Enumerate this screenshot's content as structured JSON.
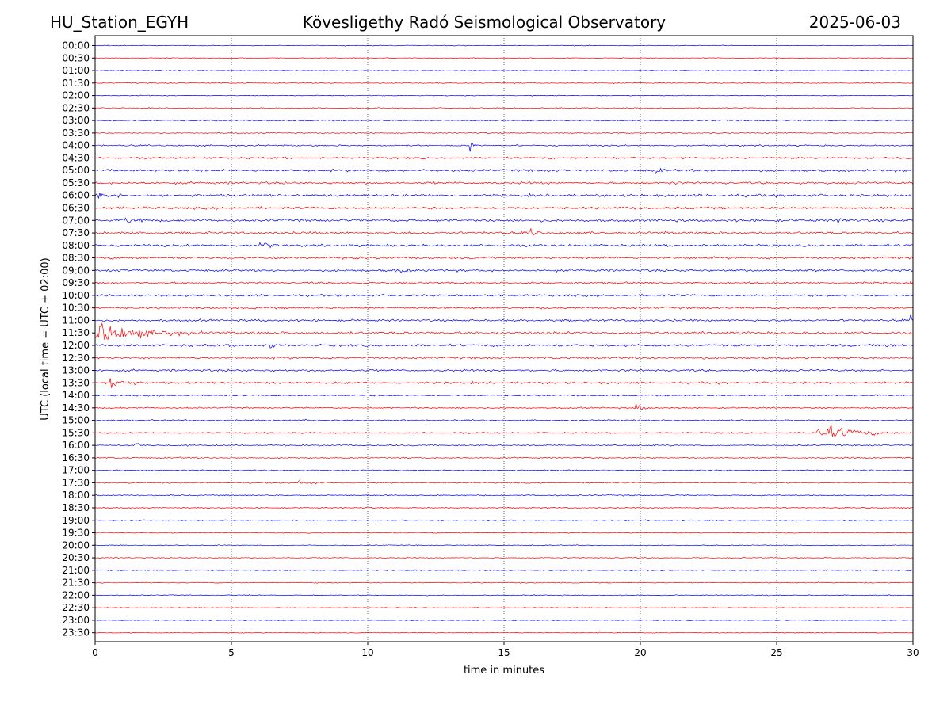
{
  "header": {
    "station": "HU_Station_EGYH",
    "title": "Kövesligethy Radó Seismological Observatory",
    "date": "2025-06-03"
  },
  "chart_data": {
    "type": "line",
    "title": "Kövesligethy Radó Seismological Observatory",
    "xlabel": "time in minutes",
    "ylabel": "UTC (local time = UTC + 02:00)",
    "xlim": [
      0,
      30
    ],
    "x_ticks": [
      "0",
      "5",
      "10",
      "15",
      "20",
      "25",
      "30"
    ],
    "grid": "vertical dotted at each 5 minutes",
    "row_labels": [
      "00:00",
      "00:30",
      "01:00",
      "01:30",
      "02:00",
      "02:30",
      "03:00",
      "03:30",
      "04:00",
      "04:30",
      "05:00",
      "05:30",
      "06:00",
      "06:30",
      "07:00",
      "07:30",
      "08:00",
      "08:30",
      "09:00",
      "09:30",
      "10:00",
      "10:30",
      "11:00",
      "11:30",
      "12:00",
      "12:30",
      "13:00",
      "13:30",
      "14:00",
      "14:30",
      "15:00",
      "15:30",
      "16:00",
      "16:30",
      "17:00",
      "17:30",
      "18:00",
      "18:30",
      "19:00",
      "19:30",
      "20:00",
      "20:30",
      "21:00",
      "21:30",
      "22:00",
      "22:30",
      "23:00",
      "23:30"
    ],
    "colors": {
      "even_rows": "#0000ff",
      "odd_rows": "#ff0000"
    },
    "noise_levels": [
      0.3,
      0.3,
      0.35,
      0.4,
      0.35,
      0.4,
      0.5,
      0.5,
      0.6,
      0.8,
      1.0,
      1.0,
      1.1,
      1.0,
      1.1,
      1.0,
      1.0,
      1.0,
      1.0,
      0.9,
      0.9,
      0.9,
      0.9,
      1.1,
      1.0,
      0.9,
      0.9,
      0.9,
      0.6,
      0.6,
      0.6,
      0.6,
      0.6,
      0.6,
      0.5,
      0.5,
      0.5,
      0.5,
      0.45,
      0.4,
      0.35,
      0.4,
      0.4,
      0.4,
      0.4,
      0.35,
      0.35,
      0.35
    ],
    "events": [
      {
        "row": "04:00",
        "minute": 13.8,
        "amplitude": 6,
        "duration": 0.3
      },
      {
        "row": "05:00",
        "minute": 20.6,
        "amplitude": 3,
        "duration": 0.8
      },
      {
        "row": "05:30",
        "minute": 21.0,
        "amplitude": 3,
        "duration": 1.0
      },
      {
        "row": "06:00",
        "minute": 0.0,
        "amplitude": 4,
        "duration": 2.0
      },
      {
        "row": "07:00",
        "minute": 1.0,
        "amplitude": 4,
        "duration": 2.0
      },
      {
        "row": "07:00",
        "minute": 27.3,
        "amplitude": 3,
        "duration": 1.0
      },
      {
        "row": "07:30",
        "minute": 16.0,
        "amplitude": 8,
        "duration": 0.4
      },
      {
        "row": "08:00",
        "minute": 6.0,
        "amplitude": 4,
        "duration": 1.5
      },
      {
        "row": "09:00",
        "minute": 11.0,
        "amplitude": 3,
        "duration": 1.5
      },
      {
        "row": "11:00",
        "minute": 29.9,
        "amplitude": 5,
        "duration": 0.2
      },
      {
        "row": "11:30",
        "minute": 0.0,
        "amplitude": 12,
        "duration": 3.0
      },
      {
        "row": "11:30",
        "minute": 2.5,
        "amplitude": 3,
        "duration": 4.0
      },
      {
        "row": "12:00",
        "minute": 6.4,
        "amplitude": 7,
        "duration": 0.4
      },
      {
        "row": "12:00",
        "minute": 29.0,
        "amplitude": 3,
        "duration": 1.0
      },
      {
        "row": "13:30",
        "minute": 0.6,
        "amplitude": 6,
        "duration": 1.5
      },
      {
        "row": "14:30",
        "minute": 19.8,
        "amplitude": 4,
        "duration": 0.8
      },
      {
        "row": "15:00",
        "minute": 7.6,
        "amplitude": 3,
        "duration": 0.5
      },
      {
        "row": "15:30",
        "minute": 26.5,
        "amplitude": 8,
        "duration": 3.0
      },
      {
        "row": "16:00",
        "minute": 1.5,
        "amplitude": 3,
        "duration": 0.6
      },
      {
        "row": "17:30",
        "minute": 7.5,
        "amplitude": 3,
        "duration": 1.2
      }
    ]
  }
}
